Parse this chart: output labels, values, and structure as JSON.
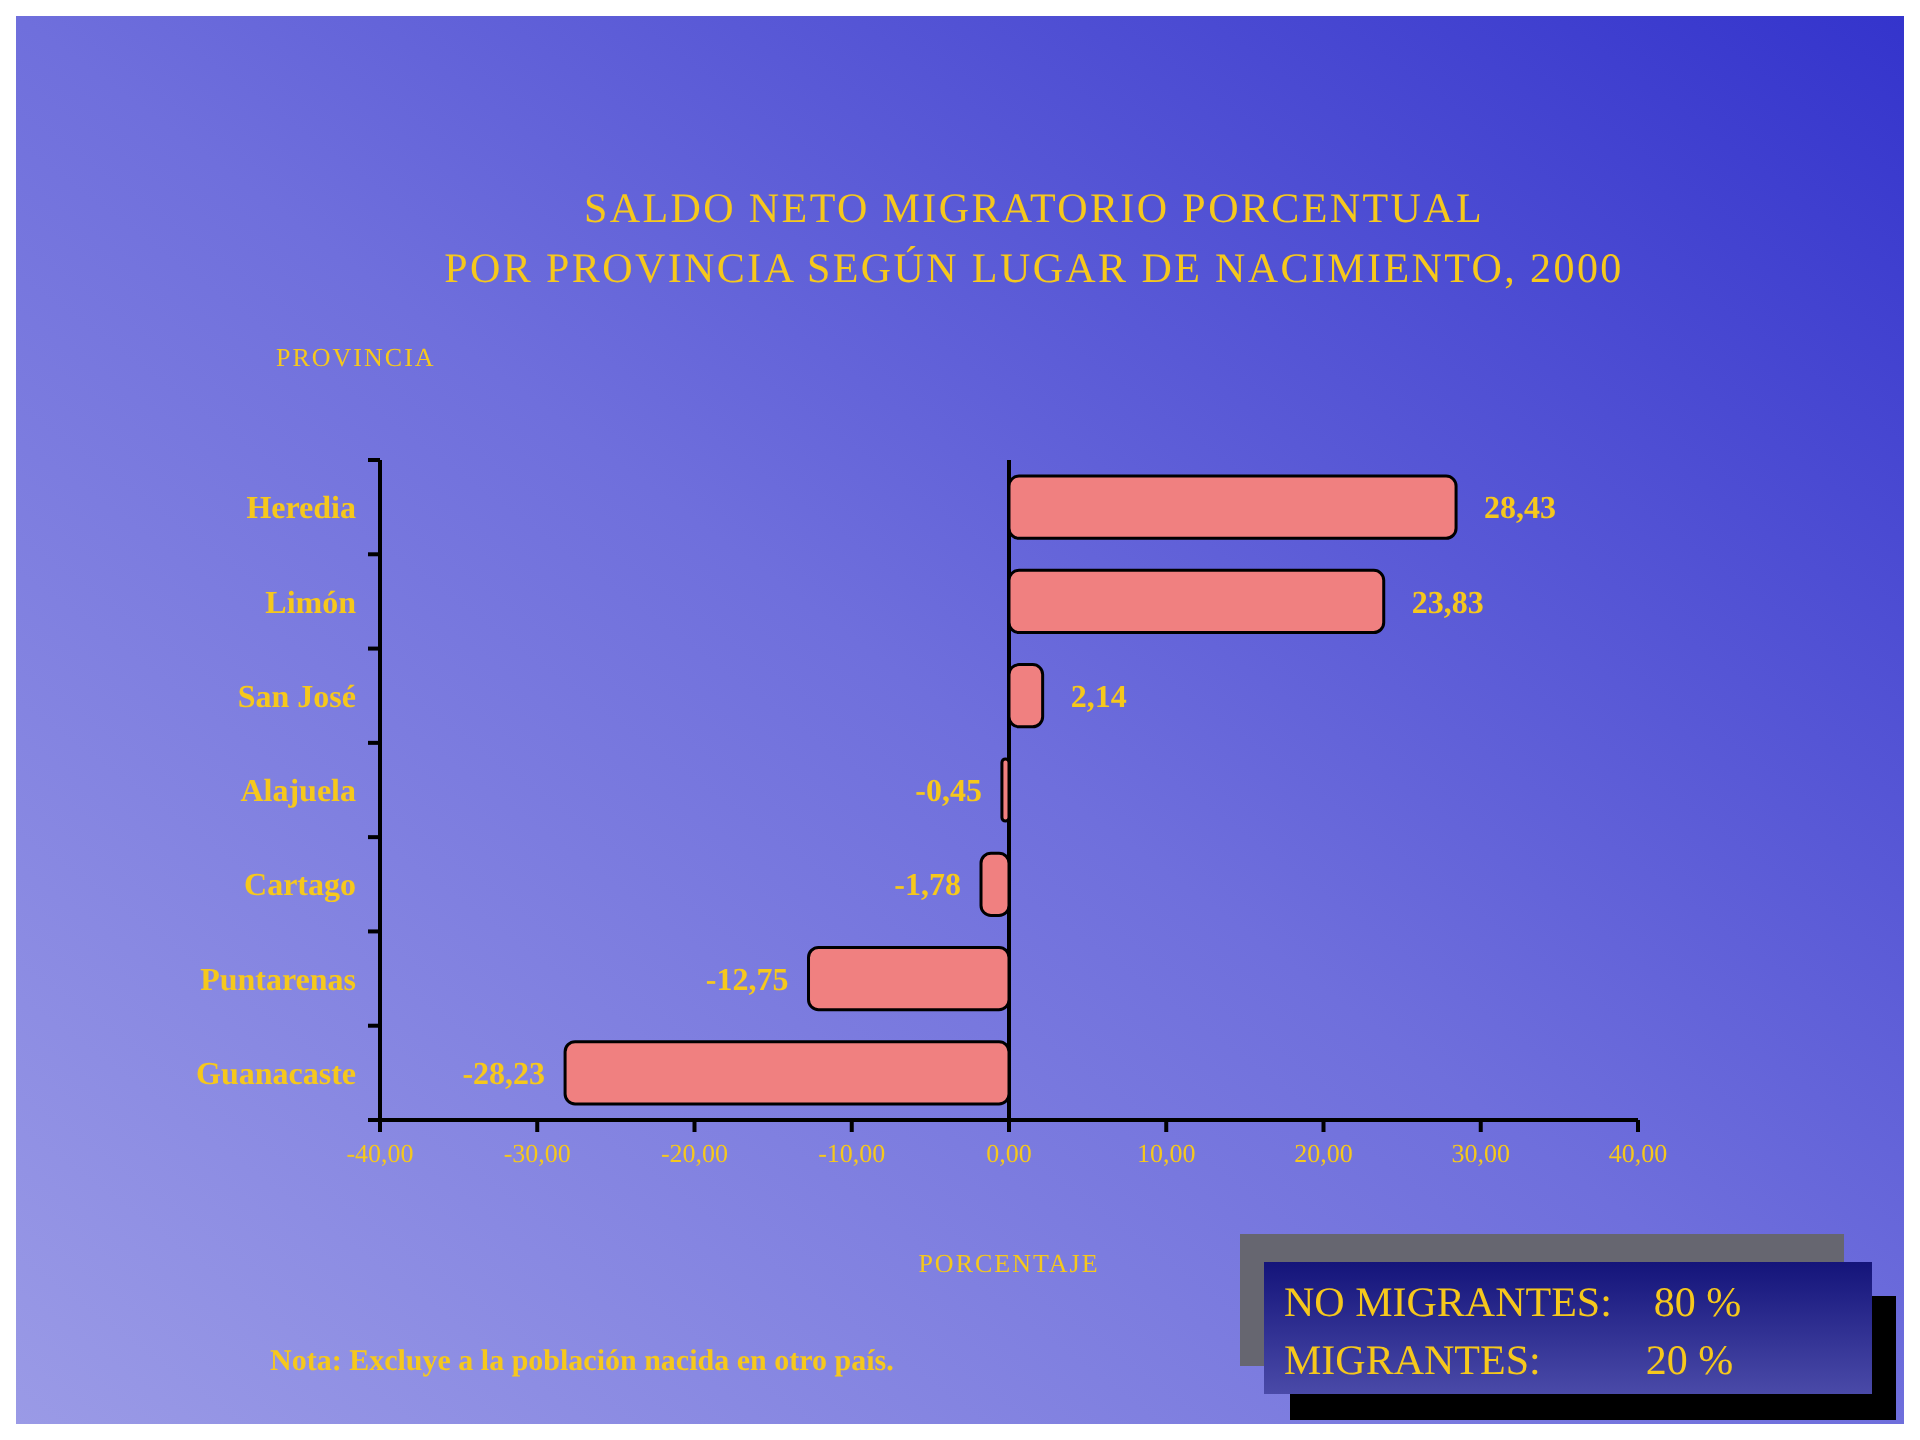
{
  "chart_data": {
    "type": "bar",
    "orientation": "horizontal",
    "title": "SALDO NETO MIGRATORIO PORCENTUAL\nPOR PROVINCIA SEGÚN LUGAR DE NACIMIENTO, 2000",
    "ylabel": "PROVINCIA",
    "xlabel": "PORCENTAJE",
    "categories": [
      "Heredia",
      "Limón",
      "San José",
      "Alajuela",
      "Cartago",
      "Puntarenas",
      "Guanacaste"
    ],
    "values": [
      28.43,
      23.83,
      2.14,
      -0.45,
      -1.78,
      -12.75,
      -28.23
    ],
    "value_labels": [
      "28,43",
      "23,83",
      "2,14",
      "-0,45",
      "-1,78",
      "-12,75",
      "-28,23"
    ],
    "color": "#f08080",
    "xlim": [
      -40,
      40
    ],
    "xticks": [
      {
        "value": -40,
        "label": "-40,00"
      },
      {
        "value": -30,
        "label": "-30,00"
      },
      {
        "value": -20,
        "label": "-20,00"
      },
      {
        "value": -10,
        "label": "-10,00"
      },
      {
        "value": 0,
        "label": "0,00"
      },
      {
        "value": 10,
        "label": "10,00"
      },
      {
        "value": 20,
        "label": "20,00"
      },
      {
        "value": 30,
        "label": "30,00"
      },
      {
        "value": 40,
        "label": "40,00"
      }
    ],
    "annotations": [
      "Nota:  Excluye a la población nacida en otro país.",
      "NO MIGRANTES:    80 %",
      "MIGRANTES:          20 %"
    ]
  }
}
